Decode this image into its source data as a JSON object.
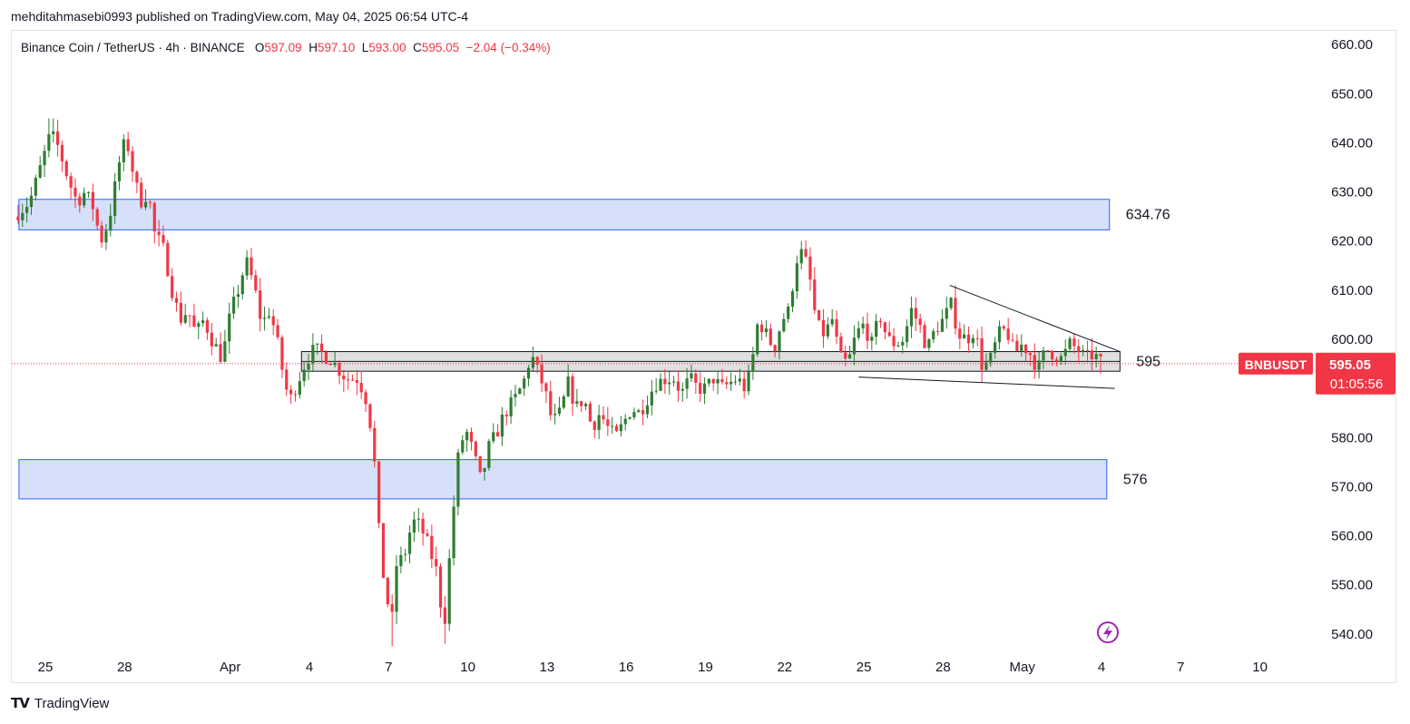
{
  "header": {
    "credit": "mehditahmasebi0993 published on TradingView.com, May 04, 2025 06:54 UTC-4"
  },
  "legend": {
    "symbol": "Binance Coin / TetherUS · 4h · BINANCE",
    "open_label": "O",
    "open": "597.09",
    "high_label": "H",
    "high": "597.10",
    "low_label": "L",
    "low": "593.00",
    "close_label": "C",
    "close": "595.05",
    "change": "−2.04 (−0.34%)"
  },
  "colors": {
    "up": "#22ab94",
    "up_body": "#2e7d32",
    "down": "#f23645",
    "zone_fill": "#d6e0fb",
    "zone_border": "#2962ff",
    "gray_zone": "#d9d9d9",
    "price_tag": "#f23645"
  },
  "price_tag": {
    "symbol": "BNBUSDT",
    "price": "595.05",
    "countdown": "01:05:56"
  },
  "footer": {
    "brand": "TradingView"
  },
  "chart_data": {
    "type": "candlestick",
    "title": "Binance Coin / TetherUS · 4h · BINANCE",
    "y_range": [
      537,
      663
    ],
    "y_ticks": [
      540,
      550,
      560,
      570,
      580,
      590,
      600,
      610,
      620,
      630,
      640,
      650,
      660
    ],
    "y_tick_labels": [
      "540.00",
      "550.00",
      "560.00",
      "570.00",
      "580.00",
      "590.00",
      "600.00",
      "610.00",
      "620.00",
      "630.00",
      "640.00",
      "650.00",
      "660.00"
    ],
    "x_ticks": [
      {
        "label": "25",
        "day": 0
      },
      {
        "label": "28",
        "day": 3
      },
      {
        "label": "Apr",
        "day": 7
      },
      {
        "label": "4",
        "day": 10
      },
      {
        "label": "7",
        "day": 13
      },
      {
        "label": "10",
        "day": 16
      },
      {
        "label": "13",
        "day": 19
      },
      {
        "label": "16",
        "day": 22
      },
      {
        "label": "19",
        "day": 25
      },
      {
        "label": "22",
        "day": 28
      },
      {
        "label": "25",
        "day": 31
      },
      {
        "label": "28",
        "day": 34
      },
      {
        "label": "May",
        "day": 37
      },
      {
        "label": "4",
        "day": 40
      },
      {
        "label": "7",
        "day": 43
      },
      {
        "label": "10",
        "day": 46
      }
    ],
    "zones": [
      {
        "label": "634.76",
        "top": 628.5,
        "bottom": 622.3,
        "day_start": -1,
        "day_end": 40.3,
        "kind": "blue"
      },
      {
        "label": "576",
        "top": 575.5,
        "bottom": 567.5,
        "day_start": -1,
        "day_end": 40.2,
        "kind": "blue"
      },
      {
        "label": "595",
        "top": 597.5,
        "bottom": 593.5,
        "day_start": 9.7,
        "day_end": 40.7,
        "kind": "gray"
      }
    ],
    "trendlines": [
      {
        "d1": 34.25,
        "p1": 611,
        "d2": 40.7,
        "p2": 597.5
      },
      {
        "d1": 30.8,
        "p1": 592.3,
        "d2": 40.5,
        "p2": 590
      }
    ],
    "last_price": 595.05,
    "anchors": [
      [
        -1.2,
        625
      ],
      [
        -0.6,
        628
      ],
      [
        -0.3,
        633
      ],
      [
        0.2,
        642
      ],
      [
        0.5,
        639
      ],
      [
        0.9,
        632
      ],
      [
        1.2,
        628
      ],
      [
        1.5,
        630
      ],
      [
        1.8,
        627
      ],
      [
        2.1,
        620
      ],
      [
        2.4,
        624
      ],
      [
        2.6,
        630
      ],
      [
        2.9,
        639
      ],
      [
        3.1,
        640
      ],
      [
        3.4,
        632
      ],
      [
        3.6,
        628
      ],
      [
        3.9,
        630
      ],
      [
        4.1,
        622
      ],
      [
        4.5,
        618
      ],
      [
        4.8,
        610
      ],
      [
        5.1,
        604
      ],
      [
        5.4,
        606
      ],
      [
        5.7,
        601
      ],
      [
        6.0,
        604
      ],
      [
        6.3,
        600
      ],
      [
        6.7,
        596
      ],
      [
        7.0,
        605
      ],
      [
        7.3,
        610
      ],
      [
        7.6,
        616
      ],
      [
        7.9,
        611
      ],
      [
        8.2,
        603
      ],
      [
        8.5,
        606
      ],
      [
        8.8,
        599
      ],
      [
        9.1,
        590
      ],
      [
        9.3,
        588
      ],
      [
        9.6,
        592
      ],
      [
        9.9,
        596
      ],
      [
        10.2,
        598
      ],
      [
        10.5,
        597
      ],
      [
        10.8,
        596
      ],
      [
        11.1,
        594
      ],
      [
        11.4,
        592
      ],
      [
        11.8,
        592
      ],
      [
        12.1,
        589
      ],
      [
        12.3,
        583
      ],
      [
        12.5,
        573
      ],
      [
        12.7,
        555
      ],
      [
        12.9,
        549
      ],
      [
        13.1,
        541
      ],
      [
        13.3,
        554
      ],
      [
        13.6,
        556
      ],
      [
        13.9,
        563
      ],
      [
        14.2,
        562
      ],
      [
        14.5,
        558
      ],
      [
        14.8,
        553
      ],
      [
        15.1,
        541
      ],
      [
        15.3,
        555
      ],
      [
        15.6,
        575
      ],
      [
        15.9,
        582
      ],
      [
        16.2,
        577
      ],
      [
        16.5,
        571
      ],
      [
        16.8,
        578
      ],
      [
        17.1,
        581
      ],
      [
        17.4,
        585
      ],
      [
        17.8,
        588
      ],
      [
        18.1,
        591
      ],
      [
        18.4,
        597
      ],
      [
        18.6,
        594
      ],
      [
        18.9,
        590
      ],
      [
        19.2,
        583
      ],
      [
        19.5,
        585
      ],
      [
        19.8,
        591
      ],
      [
        20.1,
        586
      ],
      [
        20.4,
        588
      ],
      [
        20.7,
        582
      ],
      [
        21.0,
        585
      ],
      [
        21.3,
        582
      ],
      [
        21.6,
        580
      ],
      [
        21.9,
        583
      ],
      [
        22.2,
        586
      ],
      [
        22.5,
        585
      ],
      [
        22.8,
        588
      ],
      [
        23.1,
        591
      ],
      [
        23.5,
        592
      ],
      [
        23.8,
        592
      ],
      [
        24.1,
        589
      ],
      [
        24.4,
        592
      ],
      [
        24.7,
        590
      ],
      [
        25.0,
        590
      ],
      [
        25.3,
        592
      ],
      [
        25.6,
        590
      ],
      [
        25.9,
        591
      ],
      [
        26.2,
        592
      ],
      [
        26.5,
        590
      ],
      [
        26.7,
        593
      ],
      [
        27.0,
        604
      ],
      [
        27.3,
        601
      ],
      [
        27.6,
        598
      ],
      [
        27.9,
        604
      ],
      [
        28.2,
        606
      ],
      [
        28.4,
        616
      ],
      [
        28.7,
        618
      ],
      [
        29.0,
        611
      ],
      [
        29.2,
        603
      ],
      [
        29.5,
        601
      ],
      [
        29.8,
        604
      ],
      [
        30.1,
        596
      ],
      [
        30.4,
        595
      ],
      [
        30.7,
        601
      ],
      [
        31.0,
        603
      ],
      [
        31.3,
        599
      ],
      [
        31.6,
        605
      ],
      [
        31.9,
        600
      ],
      [
        32.2,
        599
      ],
      [
        32.5,
        600
      ],
      [
        32.8,
        606
      ],
      [
        33.1,
        603
      ],
      [
        33.4,
        598
      ],
      [
        33.7,
        602
      ],
      [
        34.0,
        604
      ],
      [
        34.3,
        607
      ],
      [
        34.6,
        601
      ],
      [
        34.9,
        600
      ],
      [
        35.2,
        602
      ],
      [
        35.5,
        594
      ],
      [
        35.8,
        596
      ],
      [
        36.1,
        601
      ],
      [
        36.4,
        602
      ],
      [
        36.7,
        597
      ],
      [
        37.0,
        599
      ],
      [
        37.3,
        597
      ],
      [
        37.6,
        594
      ],
      [
        37.9,
        598
      ],
      [
        38.2,
        597
      ],
      [
        38.5,
        596
      ],
      [
        38.8,
        599
      ],
      [
        39.1,
        598
      ],
      [
        39.4,
        596
      ],
      [
        39.7,
        597
      ],
      [
        40.0,
        595.05
      ]
    ]
  }
}
